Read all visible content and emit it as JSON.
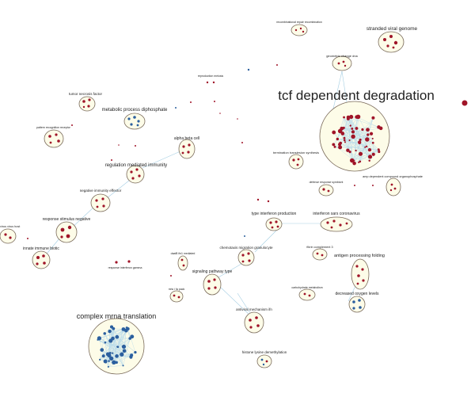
{
  "colors": {
    "cluster_fill": "#fdfce8",
    "cluster_stroke": "#7a6a5a",
    "node_red": "#a01428",
    "node_blue": "#2b5f9e",
    "edge_blue": "#8fc2dc"
  },
  "labels": {
    "recomb": "recombinational repair recombination",
    "stranded": "stranded viral genome",
    "geometric": "geometric change dna",
    "tcf": "tcf dependent degradation",
    "reproduction": "reproduction meiosis",
    "tumor": "tumor necrosis factor",
    "metabolic": "metabolic process diphosphate",
    "pattern": "pattern recognition receptor",
    "alphabeta": "alpha beta cell",
    "termination": "termination translesion synthesis",
    "regulation": "regulation mediated immunity",
    "defense": "defense response symbiont",
    "amp": "amp dependent compound organophosphate",
    "negative_immunity": "negative immunity effector",
    "type_ifn": "type interferon production",
    "interferon_sars": "interferon sars coronavirus",
    "response_neg": "response stimulus negative",
    "virus_host": "virus virus host",
    "innate": "innate immune biotic",
    "chemotaxis": "chemotaxis migration granulocyte",
    "fibrin": "fibrin complement 3",
    "antigen": "antigen processing folding",
    "daaf": "daaf8 ifn1 mediated",
    "response_ifn": "response interferon gamma",
    "signaling": "signaling pathway type",
    "mhc": "mhc i fa pack",
    "carbohydrate": "carbohydrate metabolism",
    "decreased": "decreased oxygen levels",
    "complex": "complex mrna translation",
    "antiviral": "antiviral mechanism ifn",
    "histone": "histone lysine demethylation"
  }
}
